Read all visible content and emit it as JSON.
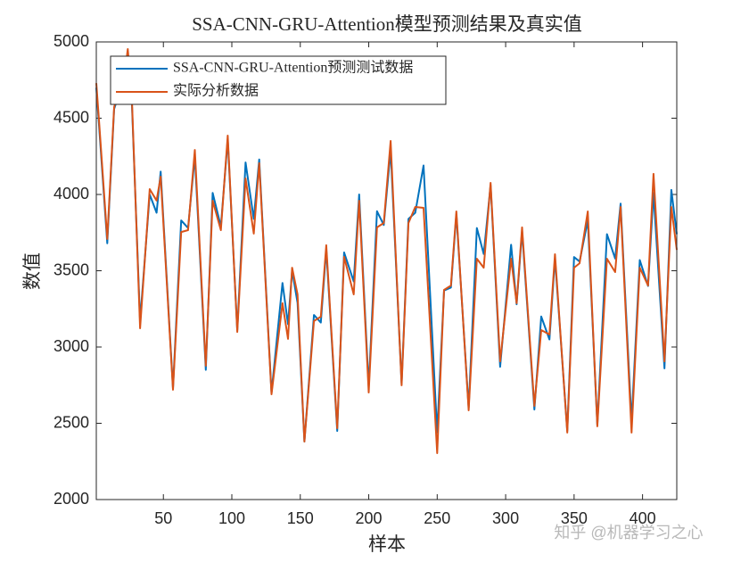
{
  "chart_data": {
    "type": "line",
    "title": "SSA-CNN-GRU-Attention模型预测结果及真实值",
    "x_label": "样本",
    "y_label": "数值",
    "watermark": "知乎 @机器学习之心",
    "x": [
      1,
      3,
      9,
      14,
      22,
      24,
      27,
      33,
      40,
      45,
      48,
      57,
      63,
      68,
      73,
      81,
      86,
      92,
      97,
      104,
      110,
      116,
      120,
      129,
      137,
      141,
      144,
      148,
      153,
      160,
      165,
      169,
      177,
      182,
      189,
      193,
      200,
      206,
      211,
      216,
      224,
      229,
      234,
      240,
      250,
      255,
      260,
      264,
      273,
      279,
      284,
      289,
      296,
      304,
      308,
      312,
      321,
      326,
      332,
      336,
      345,
      350,
      354,
      360,
      367,
      374,
      380,
      384,
      392,
      398,
      404,
      408,
      416,
      421,
      425
    ],
    "series": [
      {
        "name": "SSA-CNN-GRU-Attention预测测试数据",
        "color": "#0072BD",
        "values": [
          4700,
          4450,
          3680,
          4560,
          4780,
          4900,
          4600,
          3170,
          4000,
          3880,
          4150,
          2730,
          3830,
          3780,
          4250,
          2850,
          4010,
          3790,
          4360,
          3110,
          4210,
          3840,
          4230,
          2700,
          3420,
          3150,
          3500,
          3290,
          2380,
          3210,
          3160,
          3640,
          2450,
          3620,
          3430,
          4000,
          2740,
          3890,
          3800,
          4290,
          2760,
          3840,
          3880,
          4190,
          2440,
          3370,
          3390,
          3870,
          2600,
          3780,
          3610,
          4060,
          2870,
          3670,
          3280,
          3760,
          2590,
          3200,
          3050,
          3580,
          2450,
          3590,
          3560,
          3830,
          2490,
          3740,
          3580,
          3940,
          2510,
          3570,
          3400,
          4010,
          2860,
          4030,
          3740
        ]
      },
      {
        "name": "实际分析数据",
        "color": "#D95319",
        "values": [
          4730,
          4480,
          3708,
          4573,
          4807,
          4953,
          4630,
          3123,
          4035,
          3960,
          4117,
          2720,
          3754,
          3766,
          4292,
          2877,
          3959,
          3766,
          4386,
          3099,
          4105,
          3743,
          4205,
          2690,
          3287,
          3053,
          3520,
          3345,
          2380,
          3170,
          3199,
          3667,
          2468,
          3591,
          3345,
          3959,
          2702,
          3784,
          3813,
          4351,
          2749,
          3813,
          3918,
          3912,
          2304,
          3374,
          3403,
          3889,
          2585,
          3579,
          3520,
          4076,
          2906,
          3579,
          3287,
          3784,
          2614,
          3111,
          3082,
          3608,
          2439,
          3520,
          3549,
          3889,
          2480,
          3579,
          3491,
          3918,
          2439,
          3520,
          3403,
          4135,
          2906,
          3918,
          3637
        ]
      }
    ],
    "xlim": [
      1,
      425
    ],
    "xticks": [
      50,
      100,
      150,
      200,
      250,
      300,
      350,
      400
    ],
    "ylim": [
      2000,
      5000
    ],
    "yticks": [
      2000,
      2500,
      3000,
      3500,
      4000,
      4500,
      5000
    ],
    "legend": "upper left"
  }
}
